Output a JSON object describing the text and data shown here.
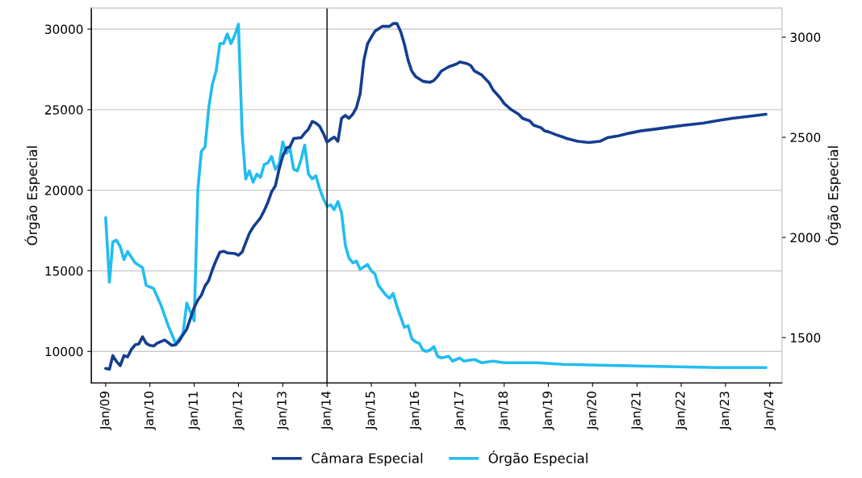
{
  "chart_data": {
    "type": "line",
    "ylabel": "Órgão Especial",
    "y2label": "Órgão Especial",
    "xlim": [
      "2008-09-05",
      "2024-04-10"
    ],
    "xticks": [
      {
        "value": "2009-01",
        "label": "Jan/09"
      },
      {
        "value": "2010-01",
        "label": "Jan/10"
      },
      {
        "value": "2011-01",
        "label": "Jan/11"
      },
      {
        "value": "2012-01",
        "label": "Jan/12"
      },
      {
        "value": "2013-01",
        "label": "Jan/13"
      },
      {
        "value": "2014-01",
        "label": "Jan/14"
      },
      {
        "value": "2015-01",
        "label": "Jan/15"
      },
      {
        "value": "2016-01",
        "label": "Jan/16"
      },
      {
        "value": "2017-01",
        "label": "Jan/17"
      },
      {
        "value": "2018-01",
        "label": "Jan/18"
      },
      {
        "value": "2019-01",
        "label": "Jan/19"
      },
      {
        "value": "2020-01",
        "label": "Jan/20"
      },
      {
        "value": "2021-01",
        "label": "Jan/21"
      },
      {
        "value": "2022-01",
        "label": "Jan/22"
      },
      {
        "value": "2023-01",
        "label": "Jan/23"
      },
      {
        "value": "2024-01",
        "label": "Jan/24"
      }
    ],
    "ylim": [
      8050,
      31300
    ],
    "yticks": [
      10000,
      15000,
      20000,
      25000,
      30000
    ],
    "y2lim": [
      1274,
      3145
    ],
    "y2ticks": [
      1500,
      2000,
      2500,
      3000
    ],
    "grid": "y",
    "legend": "bottom",
    "line_style": "solid",
    "marker": "none",
    "ref_lines": [
      {
        "axis": "x",
        "value": "2014-01",
        "color": "#000000"
      }
    ],
    "series": [
      {
        "name": "Câmara Especial",
        "color": "#153e8f",
        "axis": "y2",
        "x": [
          "2009-01",
          "2009-02",
          "2009-03",
          "2009-04",
          "2009-05",
          "2009-06",
          "2009-07",
          "2009-08",
          "2009-09",
          "2009-10",
          "2009-11",
          "2009-12",
          "2010-01",
          "2010-02",
          "2010-03",
          "2010-05",
          "2010-06",
          "2010-07",
          "2010-08",
          "2010-09",
          "2010-10",
          "2010-11",
          "2010-12",
          "2011-01",
          "2011-02",
          "2011-03",
          "2011-04",
          "2011-05",
          "2011-06",
          "2011-07",
          "2011-08",
          "2011-09",
          "2011-10",
          "2011-12",
          "2012-01",
          "2012-02",
          "2012-03",
          "2012-04",
          "2012-05",
          "2012-06",
          "2012-07",
          "2012-08",
          "2012-09",
          "2012-10",
          "2012-11",
          "2012-12",
          "2013-01",
          "2013-02",
          "2013-03",
          "2013-04",
          "2013-06",
          "2013-07",
          "2013-08",
          "2013-09",
          "2013-10",
          "2013-11",
          "2013-12",
          "2014-01",
          "2014-02",
          "2014-03",
          "2014-04",
          "2014-05",
          "2014-06",
          "2014-07",
          "2014-08",
          "2014-09",
          "2014-10",
          "2014-11",
          "2014-12",
          "2015-01",
          "2015-02",
          "2015-03",
          "2015-04",
          "2015-06",
          "2015-07",
          "2015-08",
          "2015-09",
          "2015-10",
          "2015-11",
          "2015-12",
          "2016-01",
          "2016-03",
          "2016-04",
          "2016-05",
          "2016-06",
          "2016-07",
          "2016-08",
          "2016-10",
          "2016-12",
          "2017-01",
          "2017-03",
          "2017-04",
          "2017-05",
          "2017-07",
          "2017-09",
          "2017-10",
          "2017-12",
          "2018-01",
          "2018-03",
          "2018-05",
          "2018-06",
          "2018-08",
          "2018-09",
          "2018-11",
          "2018-12",
          "2019-01",
          "2019-03",
          "2019-05",
          "2019-06",
          "2019-09",
          "2019-12",
          "2020-03",
          "2020-05",
          "2020-08",
          "2020-11",
          "2021-02",
          "2021-06",
          "2021-10",
          "2022-02",
          "2022-07",
          "2022-11",
          "2023-03",
          "2023-08",
          "2023-12"
        ],
        "values": [
          1346,
          1342,
          1410,
          1380,
          1360,
          1410,
          1404,
          1441,
          1464,
          1468,
          1504,
          1472,
          1461,
          1458,
          1472,
          1488,
          1475,
          1461,
          1464,
          1485,
          1515,
          1542,
          1596,
          1650,
          1688,
          1711,
          1758,
          1785,
          1840,
          1886,
          1927,
          1931,
          1923,
          1920,
          1911,
          1927,
          1974,
          2021,
          2051,
          2075,
          2098,
          2134,
          2177,
          2228,
          2258,
          2339,
          2406,
          2447,
          2453,
          2494,
          2498,
          2521,
          2541,
          2579,
          2571,
          2555,
          2521,
          2476,
          2490,
          2501,
          2480,
          2595,
          2609,
          2595,
          2615,
          2649,
          2717,
          2885,
          2966,
          3000,
          3030,
          3041,
          3054,
          3054,
          3068,
          3068,
          3027,
          2966,
          2885,
          2831,
          2804,
          2780,
          2777,
          2775,
          2784,
          2804,
          2831,
          2852,
          2865,
          2876,
          2868,
          2858,
          2831,
          2811,
          2771,
          2737,
          2696,
          2669,
          2638,
          2615,
          2595,
          2582,
          2561,
          2548,
          2532,
          2528,
          2514,
          2501,
          2494,
          2480,
          2474,
          2480,
          2498,
          2507,
          2521,
          2532,
          2541,
          2551,
          2561,
          2571,
          2584,
          2595,
          2606,
          2615
        ]
      },
      {
        "name": "Órgão Especial",
        "color": "#22bdf0",
        "axis": "y",
        "x": [
          "2009-01",
          "2009-02",
          "2009-03",
          "2009-04",
          "2009-05",
          "2009-06",
          "2009-07",
          "2009-09",
          "2009-11",
          "2009-12",
          "2010-02",
          "2010-04",
          "2010-06",
          "2010-08",
          "2010-10",
          "2010-11",
          "2011-01",
          "2011-02",
          "2011-03",
          "2011-04",
          "2011-05",
          "2011-06",
          "2011-07",
          "2011-08",
          "2011-09",
          "2011-10",
          "2011-11",
          "2011-12",
          "2012-01",
          "2012-02",
          "2012-03",
          "2012-04",
          "2012-05",
          "2012-06",
          "2012-07",
          "2012-08",
          "2012-09",
          "2012-10",
          "2012-11",
          "2012-12",
          "2013-01",
          "2013-02",
          "2013-03",
          "2013-04",
          "2013-05",
          "2013-06",
          "2013-07",
          "2013-08",
          "2013-09",
          "2013-10",
          "2013-11",
          "2013-12",
          "2014-01",
          "2014-02",
          "2014-03",
          "2014-04",
          "2014-05",
          "2014-06",
          "2014-07",
          "2014-08",
          "2014-09",
          "2014-10",
          "2014-12",
          "2015-01",
          "2015-02",
          "2015-03",
          "2015-05",
          "2015-06",
          "2015-07",
          "2015-08",
          "2015-10",
          "2015-11",
          "2015-12",
          "2016-01",
          "2016-02",
          "2016-03",
          "2016-04",
          "2016-05",
          "2016-06",
          "2016-07",
          "2016-08",
          "2016-10",
          "2016-11",
          "2017-01",
          "2017-02",
          "2017-05",
          "2017-07",
          "2017-10",
          "2018-01",
          "2018-04",
          "2018-10",
          "2019-05",
          "2021-01",
          "2022-11",
          "2023-12"
        ],
        "values": [
          18300,
          14300,
          16800,
          16900,
          16500,
          15700,
          16200,
          15500,
          15200,
          14100,
          13900,
          12900,
          11600,
          10500,
          11100,
          13000,
          11900,
          20100,
          22400,
          22700,
          25100,
          26600,
          27400,
          29100,
          29100,
          29700,
          29100,
          29600,
          30300,
          23500,
          20700,
          21200,
          20500,
          21000,
          20800,
          21600,
          21700,
          22100,
          21300,
          21600,
          23000,
          22300,
          22600,
          21300,
          21200,
          21900,
          22800,
          21000,
          20700,
          20900,
          20100,
          19500,
          19000,
          19100,
          18800,
          19300,
          18600,
          16600,
          15800,
          15500,
          15600,
          15100,
          15400,
          15000,
          14800,
          14100,
          13500,
          13300,
          13600,
          12800,
          11500,
          11600,
          10800,
          10600,
          10500,
          10100,
          10000,
          10100,
          10300,
          9700,
          9600,
          9700,
          9400,
          9600,
          9400,
          9500,
          9300,
          9400,
          9300,
          9300,
          9300,
          9200,
          9100,
          9000,
          9000
        ]
      }
    ]
  }
}
